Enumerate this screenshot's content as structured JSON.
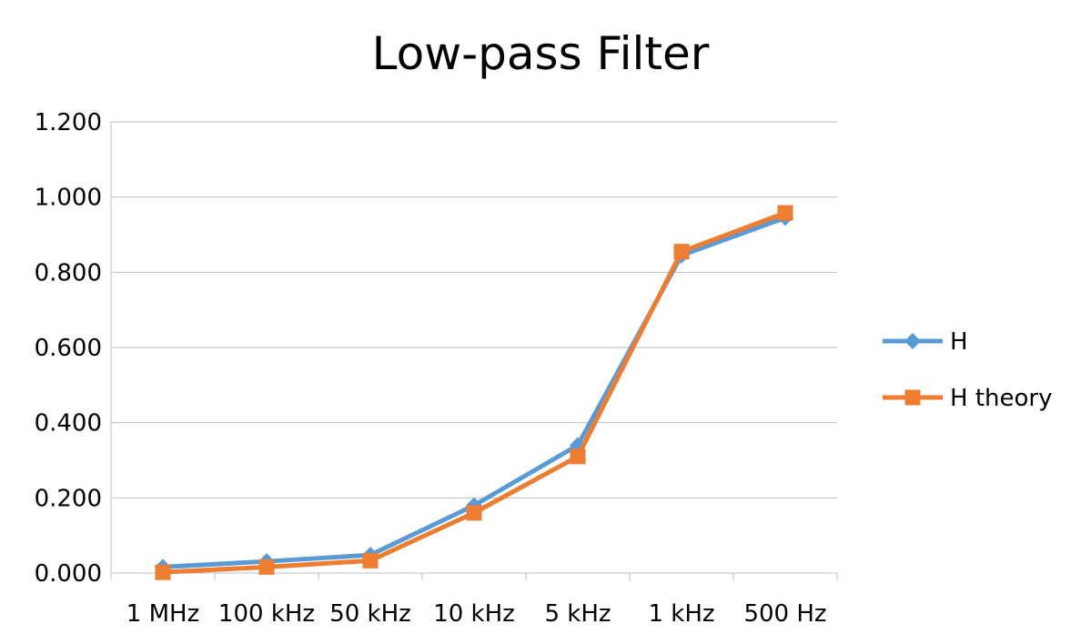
{
  "chart_data": {
    "type": "line",
    "title": "Low-pass Filter",
    "xlabel": "",
    "ylabel": "",
    "categories": [
      "1 MHz",
      "100 kHz",
      "50 kHz",
      "10 kHz",
      "5 kHz",
      "1 kHz",
      "500 Hz"
    ],
    "ylim": [
      0,
      1.2
    ],
    "yticks": [
      0,
      0.2,
      0.4,
      0.6,
      0.8,
      1.0,
      1.2
    ],
    "ytick_labels": [
      "0.000",
      "0.200",
      "0.400",
      "0.600",
      "0.800",
      "1.000",
      "1.200"
    ],
    "grid": true,
    "legend_position": "right",
    "series": [
      {
        "name": "H",
        "values": [
          0.016,
          0.031,
          0.048,
          0.18,
          0.34,
          0.845,
          0.945
        ],
        "color": "#5B9BD5",
        "marker": "diamond"
      },
      {
        "name": "H theory",
        "values": [
          0.002,
          0.016,
          0.033,
          0.16,
          0.31,
          0.855,
          0.958
        ],
        "color": "#ED7D31",
        "marker": "square"
      }
    ]
  }
}
